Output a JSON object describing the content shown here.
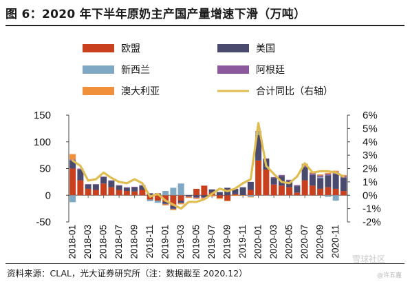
{
  "title": "图 6：2020 年下半年原奶主产国产量增速下滑（万吨）",
  "source": "资料来源：CLAL，光大证券研究所（注：数据截至  2020.12）",
  "watermark": "雪球社区",
  "watermark_user": "@许五嘉",
  "colors": {
    "欧盟": "#c9401f",
    "美国": "#4a4a6e",
    "新西兰": "#7fa8c4",
    "阿根廷": "#8c5a9c",
    "澳大利亚": "#f0903a",
    "合计同比": "#e0bd52"
  },
  "chart_data": {
    "type": "bar",
    "stacked": true,
    "x_tick_labels": [
      "2018-01",
      "2018-03",
      "2018-05",
      "2018-07",
      "2018-09",
      "2018-11",
      "2019-01",
      "2019-03",
      "2019-05",
      "2019-07",
      "2019-09",
      "2019-11",
      "2020-01",
      "2020-03",
      "2020-05",
      "2020-07",
      "2020-09",
      "2020-11"
    ],
    "categories": [
      "2018-01",
      "2018-02",
      "2018-03",
      "2018-04",
      "2018-05",
      "2018-06",
      "2018-07",
      "2018-08",
      "2018-09",
      "2018-10",
      "2018-11",
      "2018-12",
      "2019-01",
      "2019-02",
      "2019-03",
      "2019-04",
      "2019-05",
      "2019-06",
      "2019-07",
      "2019-08",
      "2019-09",
      "2019-10",
      "2019-11",
      "2019-12",
      "2020-01",
      "2020-02",
      "2020-03",
      "2020-04",
      "2020-05",
      "2020-06",
      "2020-07",
      "2020-08",
      "2020-09",
      "2020-10",
      "2020-11",
      "2020-12"
    ],
    "ylim": [
      -50,
      150
    ],
    "yticks": [
      -50,
      0,
      50,
      100,
      150
    ],
    "y2lim": [
      -2,
      6
    ],
    "y2ticks": [
      "-2%",
      "-1%",
      "0%",
      "1%",
      "2%",
      "3%",
      "4%",
      "5%",
      "6%"
    ],
    "legend": [
      "欧盟",
      "美国",
      "新西兰",
      "阿根廷",
      "澳大利亚",
      "合计同比（右轴）"
    ],
    "series": [
      {
        "name": "欧盟",
        "values": [
          50,
          28,
          12,
          10,
          22,
          15,
          10,
          8,
          7,
          10,
          -8,
          -10,
          -12,
          -20,
          -10,
          0,
          12,
          18,
          5,
          -5,
          -10,
          2,
          0,
          10,
          65,
          48,
          20,
          18,
          15,
          5,
          28,
          18,
          12,
          15,
          12,
          8
        ]
      },
      {
        "name": "美国",
        "values": [
          15,
          20,
          8,
          10,
          12,
          12,
          8,
          6,
          8,
          8,
          3,
          3,
          -4,
          -5,
          -4,
          -2,
          -4,
          -4,
          6,
          6,
          14,
          10,
          15,
          15,
          48,
          20,
          12,
          18,
          12,
          12,
          25,
          20,
          20,
          22,
          28,
          25
        ]
      },
      {
        "name": "新西兰",
        "values": [
          -13,
          0,
          0,
          0,
          0,
          0,
          0,
          0,
          0,
          0,
          -3,
          -4,
          8,
          14,
          22,
          0,
          0,
          0,
          0,
          0,
          0,
          0,
          0,
          -3,
          5,
          0,
          0,
          0,
          0,
          0,
          0,
          0,
          2,
          -3,
          -10,
          0
        ]
      },
      {
        "name": "阿根廷",
        "values": [
          2,
          2,
          1,
          1,
          1,
          1,
          1,
          1,
          1,
          1,
          1,
          1,
          -1,
          -1,
          -1,
          -1,
          -1,
          -1,
          0,
          0,
          0,
          0,
          0,
          0,
          2,
          1,
          2,
          2,
          2,
          2,
          3,
          3,
          3,
          3,
          4,
          3
        ]
      },
      {
        "name": "澳大利亚",
        "values": [
          10,
          0,
          0,
          0,
          0,
          0,
          0,
          0,
          0,
          0,
          0,
          0,
          -2,
          -2,
          -2,
          -2,
          -2,
          -2,
          -2,
          -2,
          -1,
          -1,
          -1,
          -1,
          0,
          0,
          0,
          0,
          0,
          0,
          3,
          2,
          2,
          2,
          2,
          2
        ]
      },
      {
        "name": "合计同比（右轴）",
        "axis": "right",
        "values": [
          2.6,
          2.2,
          1.1,
          1.2,
          1.7,
          1.3,
          1.0,
          0.9,
          1.2,
          0.9,
          -0.1,
          0.1,
          -0.4,
          -0.7,
          -1.0,
          -0.5,
          -0.5,
          -0.3,
          0.1,
          0.5,
          0.3,
          0.5,
          0.9,
          1.2,
          5.4,
          2.2,
          1.6,
          1.0,
          0.9,
          1.4,
          2.4,
          1.7,
          1.8,
          1.8,
          1.7,
          1.4
        ]
      }
    ]
  }
}
